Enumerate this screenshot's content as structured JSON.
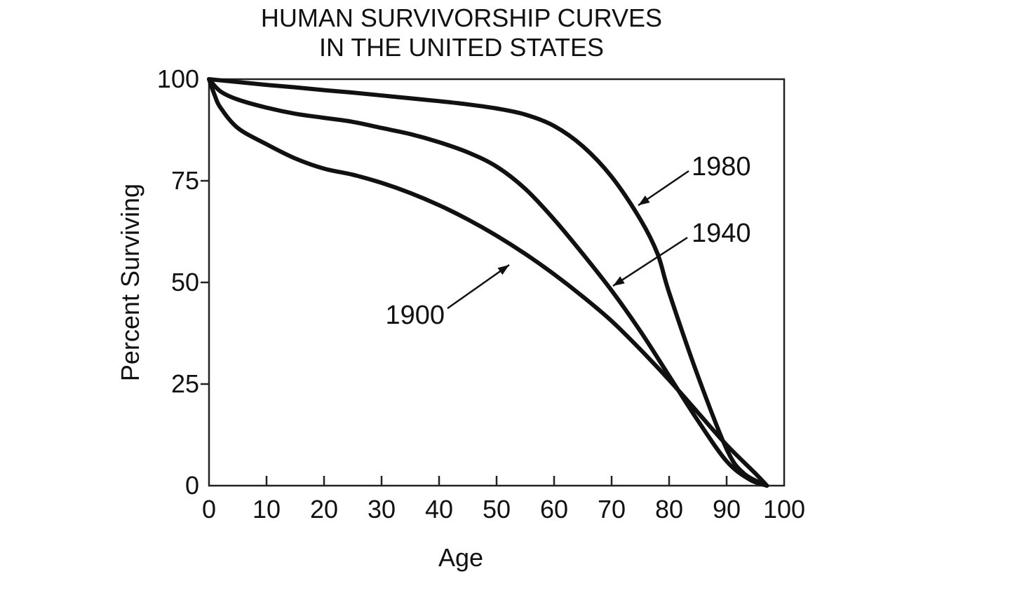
{
  "chart_data": {
    "type": "line",
    "title": [
      "HUMAN SURVIVORSHIP CURVES",
      "IN THE UNITED STATES"
    ],
    "xlabel": "Age",
    "ylabel": "Percent Surviving",
    "xlim": [
      0,
      100
    ],
    "ylim": [
      0,
      100
    ],
    "xticks": [
      "0",
      "10",
      "20",
      "30",
      "40",
      "50",
      "60",
      "70",
      "80",
      "90",
      "100"
    ],
    "yticks": [
      "0",
      "25",
      "50",
      "75",
      "100"
    ],
    "grid": false,
    "legend": "inline labels with arrows",
    "series": [
      {
        "name": "1900",
        "x": [
          0,
          1,
          2,
          5,
          10,
          15,
          20,
          25,
          30,
          35,
          40,
          45,
          50,
          55,
          60,
          65,
          70,
          75,
          80,
          85,
          90,
          95,
          97
        ],
        "y": [
          100,
          96,
          93,
          88,
          84,
          80.5,
          78,
          76.5,
          74.5,
          72,
          69,
          65.5,
          61.5,
          57,
          52,
          46.5,
          40.5,
          33.5,
          26,
          18,
          10,
          3,
          0
        ]
      },
      {
        "name": "1940",
        "x": [
          0,
          2,
          5,
          10,
          15,
          20,
          25,
          30,
          35,
          40,
          45,
          50,
          55,
          60,
          65,
          70,
          75,
          80,
          85,
          90,
          94,
          97
        ],
        "y": [
          100,
          97,
          95,
          93,
          91.5,
          90.5,
          89.5,
          88,
          86.5,
          84.5,
          82,
          78.5,
          73,
          65.5,
          57,
          48,
          38,
          27,
          16,
          6,
          1.5,
          0
        ]
      },
      {
        "name": "1980",
        "x": [
          0,
          5,
          10,
          15,
          20,
          25,
          30,
          35,
          40,
          45,
          50,
          55,
          60,
          65,
          70,
          75,
          78,
          80,
          85,
          90,
          93,
          97
        ],
        "y": [
          100,
          99.3,
          98.6,
          98,
          97.3,
          96.7,
          96,
          95.3,
          94.6,
          93.8,
          92.8,
          91.3,
          88.5,
          83.5,
          76,
          65.5,
          57,
          47.5,
          27,
          9,
          3,
          0
        ]
      }
    ],
    "labels": [
      "1980",
      "1940",
      "1900"
    ]
  }
}
